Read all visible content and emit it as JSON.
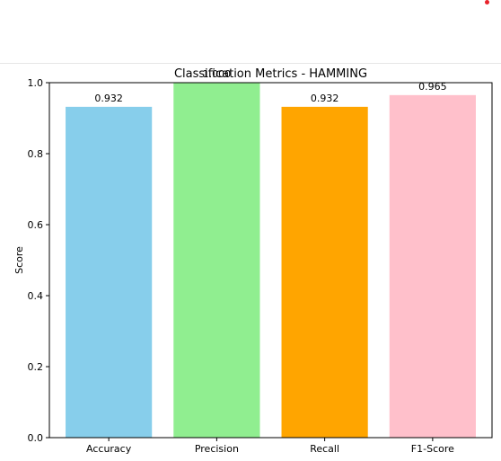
{
  "header": {
    "status_dot_color": "#e8222a"
  },
  "chart_data": {
    "type": "bar",
    "title": "Classification Metrics - HAMMING",
    "xlabel": "",
    "ylabel": "Score",
    "ylim": [
      0.0,
      1.0
    ],
    "yticks": [
      0.0,
      0.2,
      0.4,
      0.6,
      0.8,
      1.0
    ],
    "ytick_labels": [
      "0.0",
      "0.2",
      "0.4",
      "0.6",
      "0.8",
      "1.0"
    ],
    "grid": false,
    "categories": [
      "Accuracy",
      "Precision",
      "Recall",
      "F1-Score"
    ],
    "values": [
      0.932,
      1.0,
      0.932,
      0.965
    ],
    "value_labels": [
      "0.932",
      "1.000",
      "0.932",
      "0.965"
    ],
    "colors": [
      "#87ceeb",
      "#90ee90",
      "#ffa500",
      "#ffc0cb"
    ]
  }
}
